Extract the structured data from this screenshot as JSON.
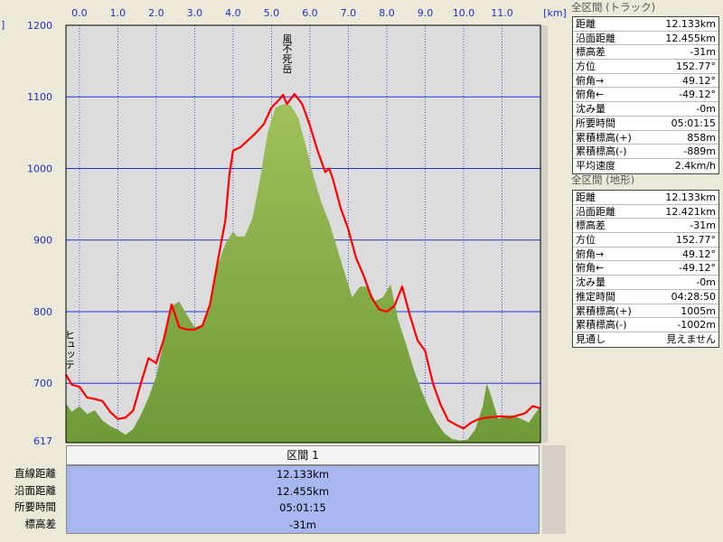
{
  "colors": {
    "terrain": "#6e9a38",
    "terrain_light": "#a0c05a",
    "track": "#ff0000",
    "grid": "#2233dd",
    "plot_bg": "#dcdcdc",
    "section_bg": "#a9b7f0"
  },
  "left_edge_mark": "]",
  "chart_data": {
    "type": "area",
    "xlabel": "[km]",
    "ylabel": "",
    "xlim": [
      -0.35,
      12.0
    ],
    "ylim": [
      617,
      1200
    ],
    "x_ticks": [
      "0.0",
      "1.0",
      "2.0",
      "3.0",
      "4.0",
      "5.0",
      "6.0",
      "7.0",
      "8.0",
      "9.0",
      "10.0",
      "11.0"
    ],
    "x_tick_values": [
      0,
      1,
      2,
      3,
      4,
      5,
      6,
      7,
      8,
      9,
      10,
      11
    ],
    "y_ticks": [
      "1200",
      "1100",
      "1000",
      "900",
      "800",
      "700",
      "617"
    ],
    "y_tick_values": [
      1200,
      1100,
      1000,
      900,
      800,
      700,
      617
    ],
    "grid": true,
    "series": [
      {
        "name": "",
        "kind": "terrain-area",
        "x": [
          -0.35,
          -0.2,
          0.0,
          0.2,
          0.4,
          0.6,
          0.8,
          1.0,
          1.2,
          1.4,
          1.6,
          1.8,
          2.0,
          2.2,
          2.4,
          2.6,
          2.8,
          3.0,
          3.2,
          3.4,
          3.6,
          3.8,
          4.0,
          4.1,
          4.3,
          4.5,
          4.7,
          4.9,
          5.1,
          5.3,
          5.5,
          5.7,
          5.9,
          6.1,
          6.3,
          6.5,
          6.7,
          6.9,
          7.1,
          7.3,
          7.5,
          7.7,
          7.9,
          8.1,
          8.3,
          8.5,
          8.7,
          8.9,
          9.1,
          9.3,
          9.5,
          9.7,
          9.9,
          10.1,
          10.3,
          10.5,
          10.6,
          10.7,
          10.9,
          11.1,
          11.3,
          11.5,
          11.7,
          12.0
        ],
        "y": [
          672,
          660,
          668,
          657,
          662,
          648,
          640,
          635,
          628,
          636,
          656,
          680,
          710,
          760,
          808,
          814,
          795,
          778,
          782,
          815,
          865,
          895,
          912,
          905,
          905,
          930,
          985,
          1050,
          1085,
          1090,
          1088,
          1070,
          1030,
          988,
          952,
          925,
          890,
          855,
          820,
          835,
          835,
          815,
          820,
          838,
          788,
          755,
          720,
          690,
          665,
          645,
          630,
          622,
          620,
          621,
          635,
          668,
          700,
          685,
          650,
          655,
          655,
          650,
          645,
          668
        ]
      },
      {
        "name": "",
        "kind": "track-line",
        "x": [
          -0.35,
          -0.2,
          0.0,
          0.2,
          0.4,
          0.6,
          0.8,
          1.0,
          1.2,
          1.4,
          1.6,
          1.8,
          2.0,
          2.2,
          2.4,
          2.6,
          2.8,
          3.0,
          3.2,
          3.4,
          3.6,
          3.8,
          3.9,
          4.0,
          4.2,
          4.4,
          4.6,
          4.8,
          5.0,
          5.2,
          5.3,
          5.4,
          5.6,
          5.8,
          6.0,
          6.2,
          6.4,
          6.5,
          6.6,
          6.8,
          7.0,
          7.2,
          7.4,
          7.6,
          7.8,
          8.0,
          8.2,
          8.4,
          8.6,
          8.8,
          9.0,
          9.2,
          9.4,
          9.6,
          9.8,
          10.0,
          10.2,
          10.4,
          10.6,
          10.8,
          11.0,
          11.2,
          11.4,
          11.6,
          11.8,
          12.0
        ],
        "y": [
          712,
          698,
          695,
          680,
          678,
          675,
          660,
          650,
          652,
          662,
          700,
          735,
          728,
          762,
          810,
          778,
          775,
          775,
          780,
          810,
          870,
          928,
          990,
          1025,
          1030,
          1040,
          1050,
          1062,
          1085,
          1096,
          1103,
          1090,
          1104,
          1090,
          1060,
          1025,
          995,
          1000,
          985,
          945,
          915,
          875,
          850,
          820,
          803,
          800,
          808,
          835,
          795,
          760,
          745,
          700,
          670,
          648,
          642,
          637,
          645,
          650,
          652,
          653,
          654,
          652,
          655,
          658,
          668,
          665
        ]
      }
    ],
    "annotations": [
      {
        "text": "風不死岳",
        "x": 5.4,
        "y": 1100
      },
      {
        "text": "ヒュッテ",
        "x": -0.35,
        "y": 712
      }
    ]
  },
  "section": {
    "header": "区間 1",
    "rows": [
      {
        "label": "直線距離",
        "value": "12.133km"
      },
      {
        "label": "沿面距離",
        "value": "12.455km"
      },
      {
        "label": "所要時間",
        "value": "05:01:15"
      },
      {
        "label": "標高差",
        "value": "-31m"
      }
    ]
  },
  "track_panel": {
    "title": "全区間 (トラック)",
    "rows": [
      {
        "label": "距離",
        "value": "12.133km"
      },
      {
        "label": "沿面距離",
        "value": "12.455km"
      },
      {
        "label": "標高差",
        "value": "-31m"
      },
      {
        "label": "方位",
        "value": "152.77°"
      },
      {
        "label": "俯角→",
        "value": "49.12°"
      },
      {
        "label": "俯角←",
        "value": "-49.12°"
      },
      {
        "label": "沈み量",
        "value": "-0m"
      },
      {
        "label": "所要時間",
        "value": "05:01:15"
      },
      {
        "label": "累積標高(+)",
        "value": "858m"
      },
      {
        "label": "累積標高(-)",
        "value": "-889m"
      },
      {
        "label": "平均速度",
        "value": "2.4km/h"
      }
    ]
  },
  "terrain_panel": {
    "title": "全区間 (地形)",
    "rows": [
      {
        "label": "距離",
        "value": "12.133km"
      },
      {
        "label": "沿面距離",
        "value": "12.421km"
      },
      {
        "label": "標高差",
        "value": "-31m"
      },
      {
        "label": "方位",
        "value": "152.77°"
      },
      {
        "label": "俯角→",
        "value": "49.12°"
      },
      {
        "label": "俯角←",
        "value": "-49.12°"
      },
      {
        "label": "沈み量",
        "value": "-0m"
      },
      {
        "label": "推定時間",
        "value": "04:28:50"
      },
      {
        "label": "累積標高(+)",
        "value": "1005m"
      },
      {
        "label": "累積標高(-)",
        "value": "-1002m"
      },
      {
        "label": "見通し",
        "value": "見えません"
      }
    ]
  }
}
